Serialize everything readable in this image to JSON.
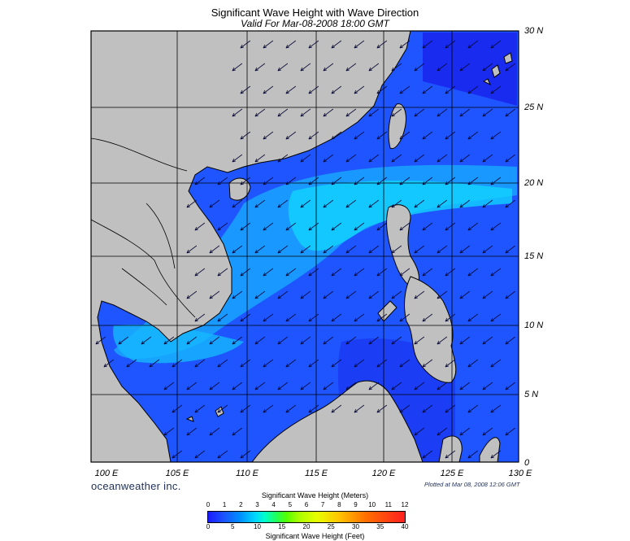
{
  "title": "Significant Wave Height with Wave Direction",
  "subtitle": "Valid For Mar-08-2008 18:00 GMT",
  "lat_labels": [
    "30 N",
    "25 N",
    "20 N",
    "15 N",
    "10 N",
    "5 N",
    "0"
  ],
  "lon_labels": [
    "100 E",
    "105 E",
    "110 E",
    "115 E",
    "120 E",
    "125 E",
    "130 E"
  ],
  "brand": "oceanweather inc.",
  "plotted": "Plotted at Mar 08, 2008 12:06 GMT",
  "colorbar": {
    "meters_title": "Significant Wave Height (Meters)",
    "meters_ticks": [
      "0",
      "1",
      "2",
      "3",
      "4",
      "5",
      "6",
      "7",
      "8",
      "9",
      "10",
      "11",
      "12"
    ],
    "feet_title": "Significant Wave Height (Feet)",
    "feet_ticks": [
      "0",
      "5",
      "10",
      "15",
      "20",
      "25",
      "30",
      "35",
      "40"
    ]
  },
  "colors": {
    "land": "#c0c0c0",
    "sea_deep": "#1a22ff",
    "sea_mid": "#1f6bff",
    "sea_light": "#10c8ff",
    "arrow": "#000022"
  },
  "arrow_direction_deg": 225
}
